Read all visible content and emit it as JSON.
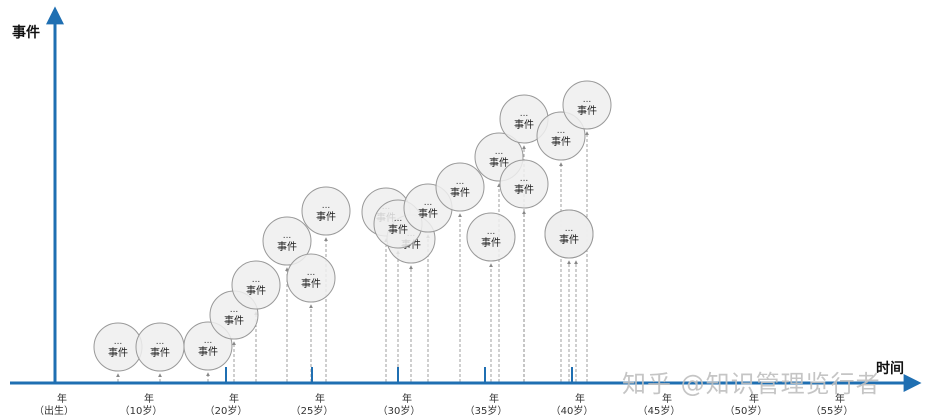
{
  "axis": {
    "y_title": "事件",
    "x_title": "时间"
  },
  "ticks": [
    {
      "year": "年",
      "age": "（出生）"
    },
    {
      "year": "年",
      "age": "（10岁）"
    },
    {
      "year": "年",
      "age": "（20岁）"
    },
    {
      "year": "年",
      "age": "（25岁）"
    },
    {
      "year": "年",
      "age": "（30岁）"
    },
    {
      "year": "年",
      "age": "（35岁）"
    },
    {
      "year": "年",
      "age": "（40岁）"
    },
    {
      "year": "年",
      "age": "（45岁）"
    },
    {
      "year": "年",
      "age": "（50岁）"
    },
    {
      "year": "年",
      "age": "（55岁）"
    }
  ],
  "event": {
    "dots": "...",
    "label": "事件"
  },
  "event_count": 21,
  "watermark": "知乎 @知识管理览行者",
  "colors": {
    "axis": "#1f6fb2",
    "bubble_fill": "#eeeeee",
    "bubble_stroke": "#999999",
    "connector": "#888888"
  }
}
